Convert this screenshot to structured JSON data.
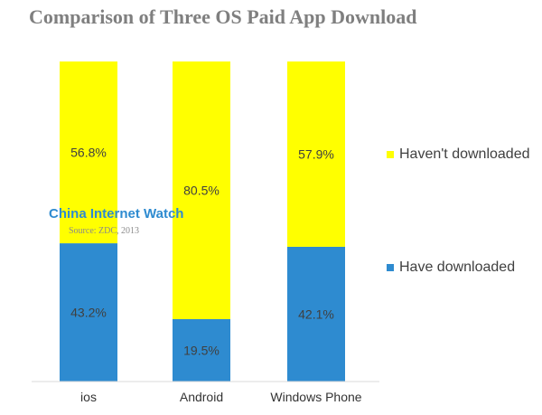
{
  "chart_data": {
    "type": "bar",
    "stacked": true,
    "title": "Comparison of Three OS Paid App Download",
    "categories": [
      "ios",
      "Android",
      "Windows Phone"
    ],
    "series": [
      {
        "name": "Have downloaded",
        "values": [
          43.2,
          19.5,
          42.1
        ],
        "labels": [
          "43.2%",
          "19.5%",
          "42.1%"
        ],
        "color": "#2e8bd0"
      },
      {
        "name": "Haven't downloaded",
        "values": [
          56.8,
          80.5,
          57.9
        ],
        "labels": [
          "56.8%",
          "80.5%",
          "57.9%"
        ],
        "color": "#ffff00"
      }
    ],
    "ylim": [
      0,
      100
    ],
    "grid": false,
    "legend_position": "right"
  },
  "legend": {
    "havent_label": "Haven't downloaded",
    "have_label": "Have downloaded"
  },
  "watermark": {
    "brand": "China Internet Watch",
    "source": "Source: ZDC, 2013"
  }
}
